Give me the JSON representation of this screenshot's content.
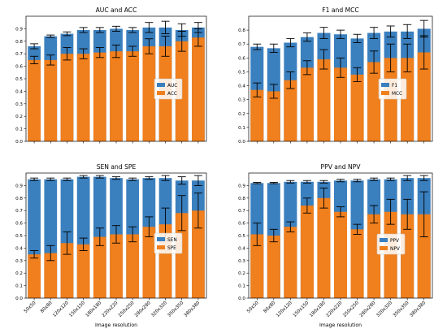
{
  "xlabel": "Image resolution",
  "categories": [
    "50x50",
    "80x80",
    "120x120",
    "150x150",
    "180x180",
    "220x220",
    "250x250",
    "280x280",
    "320x320",
    "350x350",
    "380x380"
  ],
  "colors": {
    "blue": "#3a7fbe",
    "orange": "#f07f1d"
  },
  "chart_data": [
    {
      "type": "bar",
      "title": "AUC and ACC",
      "ylim": [
        0,
        1.0
      ],
      "yticks": [
        "0.0",
        "0.1",
        "0.2",
        "0.3",
        "0.4",
        "0.5",
        "0.6",
        "0.7",
        "0.8",
        "0.9"
      ],
      "legend_position": "right",
      "series": [
        {
          "name": "AUC",
          "color": "#3a7fbe",
          "values": [
            0.76,
            0.84,
            0.86,
            0.89,
            0.89,
            0.9,
            0.89,
            0.91,
            0.91,
            0.89,
            0.91
          ],
          "err": [
            0.02,
            0.01,
            0.015,
            0.02,
            0.02,
            0.02,
            0.02,
            0.04,
            0.05,
            0.05,
            0.04
          ]
        },
        {
          "name": "ACC",
          "color": "#f07f1d",
          "values": [
            0.65,
            0.65,
            0.7,
            0.7,
            0.71,
            0.72,
            0.72,
            0.76,
            0.76,
            0.8,
            0.83
          ],
          "err": [
            0.03,
            0.04,
            0.05,
            0.04,
            0.04,
            0.05,
            0.04,
            0.06,
            0.08,
            0.08,
            0.07
          ]
        }
      ]
    },
    {
      "type": "bar",
      "title": "F1 and MCC",
      "ylim": [
        0,
        0.9
      ],
      "yticks": [
        "0.0",
        "0.1",
        "0.2",
        "0.3",
        "0.4",
        "0.5",
        "0.6",
        "0.7",
        "0.8"
      ],
      "legend_position": "right",
      "series": [
        {
          "name": "F1",
          "color": "#3a7fbe",
          "values": [
            0.68,
            0.67,
            0.71,
            0.75,
            0.78,
            0.77,
            0.74,
            0.78,
            0.79,
            0.79,
            0.81
          ],
          "err": [
            0.02,
            0.03,
            0.03,
            0.03,
            0.04,
            0.03,
            0.03,
            0.04,
            0.04,
            0.05,
            0.06
          ]
        },
        {
          "name": "MCC",
          "color": "#f07f1d",
          "values": [
            0.37,
            0.36,
            0.44,
            0.53,
            0.59,
            0.53,
            0.48,
            0.57,
            0.6,
            0.6,
            0.64
          ],
          "err": [
            0.05,
            0.05,
            0.06,
            0.05,
            0.07,
            0.07,
            0.05,
            0.08,
            0.1,
            0.1,
            0.12
          ]
        }
      ]
    },
    {
      "type": "bar",
      "title": "SEN and SPE",
      "ylim": [
        0,
        1.0
      ],
      "yticks": [
        "0.0",
        "0.1",
        "0.2",
        "0.3",
        "0.4",
        "0.5",
        "0.6",
        "0.7",
        "0.8",
        "0.9"
      ],
      "legend_position": "right",
      "series": [
        {
          "name": "SEN",
          "color": "#3a7fbe",
          "values": [
            0.95,
            0.95,
            0.95,
            0.97,
            0.97,
            0.96,
            0.95,
            0.96,
            0.96,
            0.94,
            0.94
          ],
          "err": [
            0.01,
            0.01,
            0.01,
            0.01,
            0.01,
            0.01,
            0.01,
            0.01,
            0.02,
            0.03,
            0.04
          ]
        },
        {
          "name": "SPE",
          "color": "#f07f1d",
          "values": [
            0.35,
            0.36,
            0.44,
            0.43,
            0.49,
            0.51,
            0.51,
            0.57,
            0.59,
            0.68,
            0.7
          ],
          "err": [
            0.03,
            0.06,
            0.09,
            0.05,
            0.07,
            0.07,
            0.06,
            0.08,
            0.13,
            0.14,
            0.14
          ]
        }
      ]
    },
    {
      "type": "bar",
      "title": "PPV and NPV",
      "ylim": [
        0,
        1.0
      ],
      "yticks": [
        "0.0",
        "0.1",
        "0.2",
        "0.3",
        "0.4",
        "0.5",
        "0.6",
        "0.7",
        "0.8",
        "0.9"
      ],
      "legend_position": "lower right",
      "series": [
        {
          "name": "PPV",
          "color": "#3a7fbe",
          "values": [
            0.92,
            0.92,
            0.93,
            0.93,
            0.93,
            0.94,
            0.94,
            0.95,
            0.95,
            0.96,
            0.96
          ],
          "err": [
            0.005,
            0.005,
            0.01,
            0.01,
            0.01,
            0.01,
            0.01,
            0.01,
            0.01,
            0.02,
            0.02
          ]
        },
        {
          "name": "NPV",
          "color": "#f07f1d",
          "values": [
            0.51,
            0.5,
            0.57,
            0.74,
            0.8,
            0.69,
            0.55,
            0.67,
            0.69,
            0.67,
            0.67
          ],
          "err": [
            0.09,
            0.05,
            0.04,
            0.06,
            0.08,
            0.04,
            0.04,
            0.07,
            0.1,
            0.12,
            0.18
          ]
        }
      ]
    }
  ]
}
